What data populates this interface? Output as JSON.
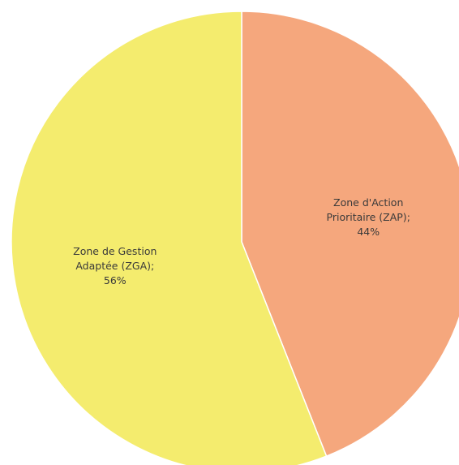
{
  "chart_data": {
    "type": "pie",
    "start_angle_deg": 0,
    "direction": "clockwise",
    "slices": [
      {
        "label_lines": [
          "Zone d'Action",
          "Prioritaire (ZAP);",
          "44%"
        ],
        "value": 44,
        "color": "#f5a77d"
      },
      {
        "label_lines": [
          "Zone de Gestion",
          "Adaptée (ZGA);",
          "56%"
        ],
        "value": 56,
        "color": "#f4ec6e"
      }
    ],
    "border_color": "#ffffff"
  }
}
